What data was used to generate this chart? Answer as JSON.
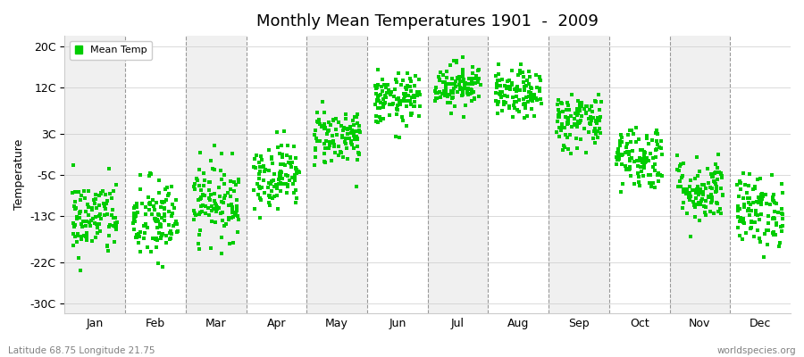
{
  "title": "Monthly Mean Temperatures 1901  -  2009",
  "ylabel": "Temperature",
  "xlabel_bottom_left": "Latitude 68.75 Longitude 21.75",
  "xlabel_bottom_right": "worldspecies.org",
  "legend_label": "Mean Temp",
  "dot_color": "#00cc00",
  "background_color": "#ffffff",
  "plot_bg_even": "#f0f0f0",
  "plot_bg_odd": "#ffffff",
  "yticks": [
    -30,
    -22,
    -13,
    -5,
    3,
    12,
    20
  ],
  "ytick_labels": [
    "-30C",
    "-22C",
    "-13C",
    "-5C",
    "3C",
    "12C",
    "20C"
  ],
  "ylim": [
    -32,
    22
  ],
  "months": [
    "Jan",
    "Feb",
    "Mar",
    "Apr",
    "May",
    "Jun",
    "Jul",
    "Aug",
    "Sep",
    "Oct",
    "Nov",
    "Dec"
  ],
  "n_years": 109,
  "mean_temps": [
    -13.5,
    -14.0,
    -10.0,
    -5.0,
    2.5,
    9.5,
    12.5,
    10.5,
    5.5,
    -1.5,
    -8.0,
    -12.0
  ],
  "std_temps": [
    3.8,
    4.2,
    3.8,
    3.2,
    2.8,
    2.5,
    2.2,
    2.3,
    2.8,
    3.2,
    3.2,
    3.5
  ],
  "figsize": [
    9.0,
    4.0
  ],
  "dpi": 100
}
